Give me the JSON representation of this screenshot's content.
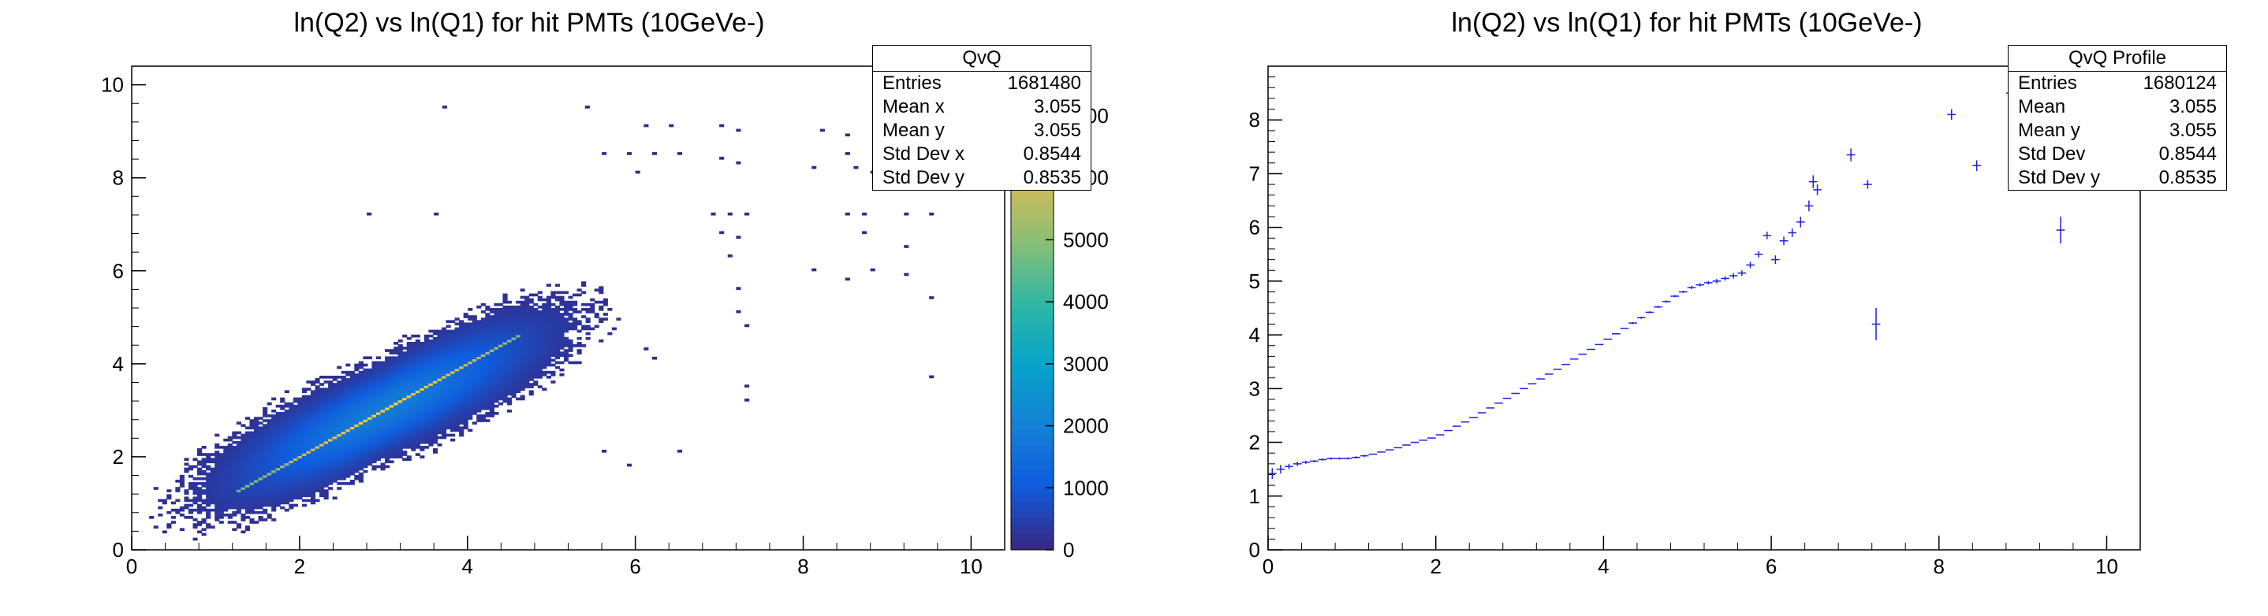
{
  "chart_data": [
    {
      "type": "heatmap",
      "title": "ln(Q2) vs ln(Q1) for hit PMTs (10GeVe-)",
      "xlabel": "",
      "ylabel": "",
      "xlim": [
        0,
        10.4
      ],
      "ylim": [
        0,
        10.4
      ],
      "x_ticks": [
        "0",
        "2",
        "4",
        "6",
        "8",
        "10"
      ],
      "y_ticks": [
        "0",
        "2",
        "4",
        "6",
        "8",
        "10"
      ],
      "colorbar": {
        "range": [
          0,
          7800
        ],
        "ticks": [
          "0",
          "1000",
          "2000",
          "3000",
          "4000",
          "5000",
          "6000",
          "7000",
          "8000"
        ],
        "palette": "viridis-like",
        "colors": [
          "#352a87",
          "#0f5cdd",
          "#1481d6",
          "#06a4ca",
          "#2eb7a4",
          "#87bf77",
          "#d1bb59",
          "#fec832",
          "#f9fb0e"
        ]
      },
      "density_model": {
        "ridge": {
          "x_start": 1.2,
          "x_end": 4.6,
          "peak_counts": 7000
        },
        "core": {
          "x_min": 0.3,
          "x_max": 5.8,
          "spread": 0.55
        },
        "sparse_points": [
          [
            3.7,
            9.5
          ],
          [
            5.4,
            9.5
          ],
          [
            6.1,
            9.1
          ],
          [
            6.4,
            9.1
          ],
          [
            7.0,
            9.1
          ],
          [
            7.2,
            9.0
          ],
          [
            8.2,
            9.0
          ],
          [
            8.5,
            8.9
          ],
          [
            5.6,
            8.5
          ],
          [
            5.9,
            8.5
          ],
          [
            6.2,
            8.5
          ],
          [
            6.5,
            8.5
          ],
          [
            7.0,
            8.4
          ],
          [
            7.2,
            8.3
          ],
          [
            8.5,
            8.5
          ],
          [
            8.8,
            8.1
          ],
          [
            6.0,
            8.1
          ],
          [
            8.1,
            8.2
          ],
          [
            8.6,
            8.2
          ],
          [
            9.0,
            8.2
          ],
          [
            9.3,
            8.1
          ],
          [
            9.5,
            8.1
          ],
          [
            2.8,
            7.2
          ],
          [
            3.6,
            7.2
          ],
          [
            6.9,
            7.2
          ],
          [
            7.1,
            7.2
          ],
          [
            7.3,
            7.2
          ],
          [
            8.5,
            7.2
          ],
          [
            8.7,
            7.2
          ],
          [
            9.2,
            7.2
          ],
          [
            9.5,
            7.2
          ],
          [
            7.0,
            6.8
          ],
          [
            7.2,
            6.7
          ],
          [
            8.7,
            6.8
          ],
          [
            9.2,
            6.5
          ],
          [
            7.1,
            6.3
          ],
          [
            8.1,
            6.0
          ],
          [
            8.8,
            6.0
          ],
          [
            9.2,
            5.9
          ],
          [
            7.2,
            5.6
          ],
          [
            8.5,
            5.8
          ],
          [
            9.5,
            5.4
          ],
          [
            7.2,
            5.1
          ],
          [
            7.3,
            4.8
          ],
          [
            6.2,
            4.1
          ],
          [
            6.1,
            4.3
          ],
          [
            7.3,
            3.5
          ],
          [
            7.3,
            3.2
          ],
          [
            9.5,
            3.7
          ],
          [
            5.6,
            2.1
          ],
          [
            6.5,
            2.1
          ],
          [
            5.9,
            1.8
          ]
        ]
      },
      "stats": {
        "name": "QvQ",
        "rows": [
          {
            "label": "Entries",
            "value": "1681480"
          },
          {
            "label": "Mean x",
            "value": "3.055"
          },
          {
            "label": "Mean y",
            "value": "3.055"
          },
          {
            "label": "Std Dev x",
            "value": "0.8544"
          },
          {
            "label": "Std Dev y",
            "value": "0.8535"
          }
        ]
      }
    },
    {
      "type": "scatter",
      "title": "ln(Q2) vs ln(Q1) for hit PMTs (10GeVe-)",
      "xlabel": "",
      "ylabel": "",
      "xlim": [
        0,
        10.4
      ],
      "ylim": [
        0,
        9.0
      ],
      "x_ticks": [
        "0",
        "2",
        "4",
        "6",
        "8",
        "10"
      ],
      "y_ticks": [
        "0",
        "1",
        "2",
        "3",
        "4",
        "5",
        "6",
        "7",
        "8"
      ],
      "marker_color": "#1f1fe0",
      "points": [
        [
          0.05,
          1.42,
          0.1
        ],
        [
          0.15,
          1.5,
          0.08
        ],
        [
          0.25,
          1.55,
          0.05
        ],
        [
          0.35,
          1.6,
          0.04
        ],
        [
          0.45,
          1.63,
          0.03
        ],
        [
          0.55,
          1.65,
          0.02
        ],
        [
          0.65,
          1.68,
          0.02
        ],
        [
          0.75,
          1.7,
          0.02
        ],
        [
          0.85,
          1.7,
          0.02
        ],
        [
          0.95,
          1.7,
          0.02
        ],
        [
          1.05,
          1.72,
          0.02
        ],
        [
          1.15,
          1.75,
          0.02
        ],
        [
          1.25,
          1.78,
          0.01
        ],
        [
          1.35,
          1.82,
          0.01
        ],
        [
          1.45,
          1.86,
          0.01
        ],
        [
          1.55,
          1.9,
          0.01
        ],
        [
          1.65,
          1.95,
          0.01
        ],
        [
          1.75,
          2.0,
          0.01
        ],
        [
          1.85,
          2.04,
          0.01
        ],
        [
          1.95,
          2.08,
          0.01
        ],
        [
          2.05,
          2.14,
          0.01
        ],
        [
          2.15,
          2.22,
          0.01
        ],
        [
          2.25,
          2.3,
          0.01
        ],
        [
          2.35,
          2.38,
          0.01
        ],
        [
          2.45,
          2.46,
          0.01
        ],
        [
          2.55,
          2.55,
          0.01
        ],
        [
          2.65,
          2.64,
          0.01
        ],
        [
          2.75,
          2.73,
          0.01
        ],
        [
          2.85,
          2.82,
          0.01
        ],
        [
          2.95,
          2.91,
          0.01
        ],
        [
          3.05,
          3.0,
          0.01
        ],
        [
          3.15,
          3.09,
          0.01
        ],
        [
          3.25,
          3.18,
          0.01
        ],
        [
          3.35,
          3.27,
          0.01
        ],
        [
          3.45,
          3.36,
          0.01
        ],
        [
          3.55,
          3.45,
          0.01
        ],
        [
          3.65,
          3.55,
          0.01
        ],
        [
          3.75,
          3.64,
          0.01
        ],
        [
          3.85,
          3.73,
          0.01
        ],
        [
          3.95,
          3.82,
          0.01
        ],
        [
          4.05,
          3.92,
          0.01
        ],
        [
          4.15,
          4.02,
          0.01
        ],
        [
          4.25,
          4.12,
          0.01
        ],
        [
          4.35,
          4.22,
          0.02
        ],
        [
          4.45,
          4.32,
          0.02
        ],
        [
          4.55,
          4.42,
          0.02
        ],
        [
          4.65,
          4.52,
          0.02
        ],
        [
          4.75,
          4.62,
          0.02
        ],
        [
          4.85,
          4.72,
          0.02
        ],
        [
          4.95,
          4.8,
          0.02
        ],
        [
          5.05,
          4.88,
          0.03
        ],
        [
          5.15,
          4.93,
          0.03
        ],
        [
          5.25,
          4.97,
          0.03
        ],
        [
          5.35,
          5.0,
          0.04
        ],
        [
          5.45,
          5.05,
          0.04
        ],
        [
          5.55,
          5.1,
          0.05
        ],
        [
          5.65,
          5.15,
          0.05
        ],
        [
          5.75,
          5.3,
          0.06
        ],
        [
          5.85,
          5.5,
          0.06
        ],
        [
          5.95,
          5.85,
          0.07
        ],
        [
          6.05,
          5.4,
          0.08
        ],
        [
          6.15,
          5.75,
          0.08
        ],
        [
          6.25,
          5.9,
          0.08
        ],
        [
          6.35,
          6.1,
          0.1
        ],
        [
          6.45,
          6.4,
          0.1
        ],
        [
          6.5,
          6.85,
          0.12
        ],
        [
          6.55,
          6.7,
          0.1
        ],
        [
          6.95,
          7.35,
          0.12
        ],
        [
          7.15,
          6.8,
          0.08
        ],
        [
          7.25,
          4.2,
          0.3
        ],
        [
          8.15,
          8.1,
          0.1
        ],
        [
          8.45,
          7.15,
          0.1
        ],
        [
          8.85,
          8.5,
          0.1
        ],
        [
          9.45,
          5.95,
          0.25
        ]
      ],
      "stats": {
        "name": "QvQ Profile",
        "rows": [
          {
            "label": "Entries",
            "value": "1680124"
          },
          {
            "label": "Mean",
            "value": "3.055"
          },
          {
            "label": "Mean y",
            "value": "3.055"
          },
          {
            "label": "Std Dev",
            "value": "0.8544"
          },
          {
            "label": "Std Dev y",
            "value": "0.8535"
          }
        ]
      }
    }
  ]
}
